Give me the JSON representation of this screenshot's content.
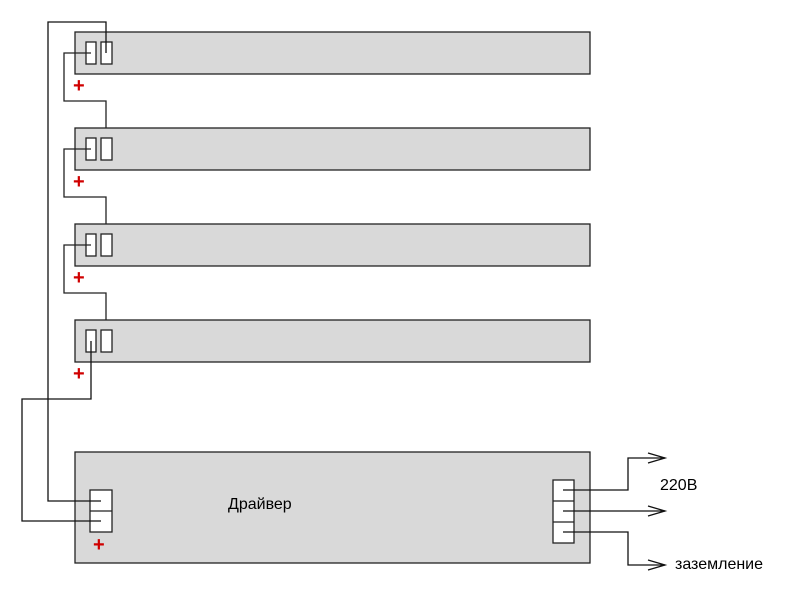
{
  "strips": [
    {
      "positive_mark": "+"
    },
    {
      "positive_mark": "+"
    },
    {
      "positive_mark": "+"
    },
    {
      "positive_mark": "+"
    }
  ],
  "driver": {
    "label": "Драйвер",
    "positive_mark": "+"
  },
  "outputs": {
    "voltage_label": "220В",
    "ground_label": "заземление"
  },
  "colors": {
    "module_fill": "#d9d9d9",
    "plus": "#d00000",
    "wire": "#000000"
  }
}
